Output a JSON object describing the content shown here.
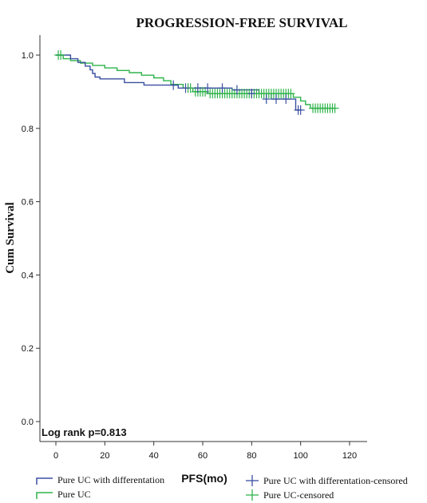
{
  "chart_data": {
    "type": "line",
    "title": "PROGRESSION-FREE SURVIVAL",
    "xlabel": "PFS(mo)",
    "ylabel": "Cum Survival",
    "xlim": [
      0,
      120
    ],
    "ylim": [
      0.0,
      1.0
    ],
    "x_ticks": [
      "0",
      "20",
      "40",
      "60",
      "80",
      "100",
      "120"
    ],
    "y_ticks": [
      "0.0",
      "0.2",
      "0.4",
      "0.6",
      "0.8",
      "1.0"
    ],
    "annotation": "Log rank p=0.813",
    "grid": false,
    "legend_position": "bottom",
    "series": [
      {
        "name": "Pure UC with differentation",
        "color": "#3a4fa0",
        "points": [
          [
            0,
            1.0
          ],
          [
            6,
            1.0
          ],
          [
            6,
            0.99
          ],
          [
            9,
            0.99
          ],
          [
            9,
            0.98
          ],
          [
            12,
            0.98
          ],
          [
            12,
            0.97
          ],
          [
            14,
            0.97
          ],
          [
            14,
            0.96
          ],
          [
            15,
            0.96
          ],
          [
            15,
            0.95
          ],
          [
            16,
            0.95
          ],
          [
            16,
            0.94
          ],
          [
            18,
            0.94
          ],
          [
            18,
            0.935
          ],
          [
            28,
            0.935
          ],
          [
            28,
            0.925
          ],
          [
            36,
            0.925
          ],
          [
            36,
            0.918
          ],
          [
            50,
            0.918
          ],
          [
            50,
            0.91
          ],
          [
            72,
            0.91
          ],
          [
            72,
            0.905
          ],
          [
            83,
            0.905
          ],
          [
            83,
            0.895
          ],
          [
            88,
            0.895
          ],
          [
            88,
            0.88
          ],
          [
            98,
            0.88
          ],
          [
            98,
            0.85
          ],
          [
            100,
            0.85
          ]
        ],
        "censored_x": [
          48,
          53,
          58,
          62,
          68,
          74,
          80,
          86,
          90,
          94,
          99,
          100
        ],
        "censored_y": [
          0.918,
          0.91,
          0.91,
          0.91,
          0.91,
          0.905,
          0.895,
          0.88,
          0.88,
          0.88,
          0.85,
          0.85
        ]
      },
      {
        "name": "Pure UC",
        "color": "#2fb34a",
        "points": [
          [
            0,
            1.0
          ],
          [
            3,
            1.0
          ],
          [
            3,
            0.99
          ],
          [
            6,
            0.99
          ],
          [
            6,
            0.985
          ],
          [
            10,
            0.985
          ],
          [
            10,
            0.978
          ],
          [
            15,
            0.978
          ],
          [
            15,
            0.972
          ],
          [
            20,
            0.972
          ],
          [
            20,
            0.965
          ],
          [
            25,
            0.965
          ],
          [
            25,
            0.958
          ],
          [
            30,
            0.958
          ],
          [
            30,
            0.952
          ],
          [
            35,
            0.952
          ],
          [
            35,
            0.945
          ],
          [
            40,
            0.945
          ],
          [
            40,
            0.938
          ],
          [
            44,
            0.938
          ],
          [
            44,
            0.93
          ],
          [
            47,
            0.93
          ],
          [
            47,
            0.92
          ],
          [
            52,
            0.92
          ],
          [
            52,
            0.91
          ],
          [
            56,
            0.91
          ],
          [
            56,
            0.9
          ],
          [
            62,
            0.9
          ],
          [
            62,
            0.895
          ],
          [
            97,
            0.895
          ],
          [
            97,
            0.885
          ],
          [
            100,
            0.885
          ],
          [
            100,
            0.875
          ],
          [
            102,
            0.875
          ],
          [
            102,
            0.865
          ],
          [
            104,
            0.865
          ],
          [
            104,
            0.855
          ],
          [
            114,
            0.855
          ]
        ],
        "censored_x": [
          1,
          2,
          54,
          55,
          57,
          58,
          59,
          60,
          61,
          63,
          64,
          65,
          66,
          67,
          68,
          69,
          70,
          71,
          72,
          73,
          74,
          75,
          76,
          77,
          78,
          79,
          80,
          81,
          82,
          83,
          84,
          85,
          86,
          87,
          88,
          89,
          90,
          91,
          92,
          93,
          94,
          95,
          96,
          105,
          106,
          107,
          108,
          109,
          110,
          111,
          112,
          113,
          114
        ],
        "censored_y": [
          1.0,
          1.0,
          0.91,
          0.91,
          0.9,
          0.9,
          0.9,
          0.9,
          0.9,
          0.895,
          0.895,
          0.895,
          0.895,
          0.895,
          0.895,
          0.895,
          0.895,
          0.895,
          0.895,
          0.895,
          0.895,
          0.895,
          0.895,
          0.895,
          0.895,
          0.895,
          0.895,
          0.895,
          0.895,
          0.895,
          0.895,
          0.895,
          0.895,
          0.895,
          0.895,
          0.895,
          0.895,
          0.895,
          0.895,
          0.895,
          0.895,
          0.895,
          0.895,
          0.855,
          0.855,
          0.855,
          0.855,
          0.855,
          0.855,
          0.855,
          0.855,
          0.855,
          0.855
        ]
      }
    ]
  },
  "legend": {
    "item1": "Pure UC with differentation",
    "item2": "Pure UC with differentation-censored",
    "item3": "Pure UC",
    "item4": "Pure UC-censored"
  }
}
